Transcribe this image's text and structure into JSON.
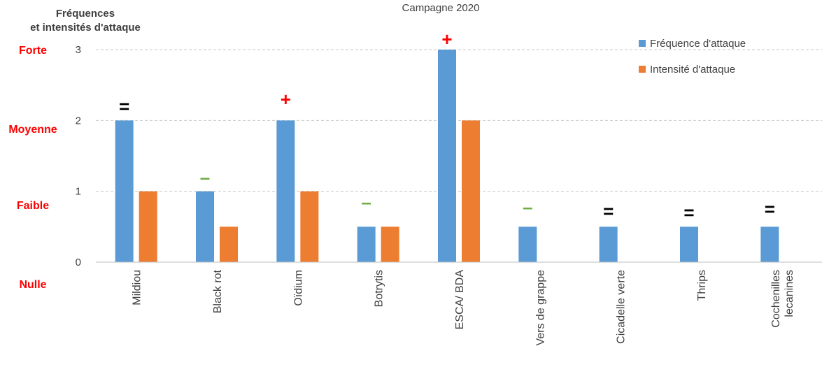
{
  "chart_data": {
    "type": "bar",
    "title": "Campagne 2020",
    "ylabel_lines": [
      "Fréquences",
      "et intensités d'attaque"
    ],
    "ylim": [
      0,
      3
    ],
    "yticks": [
      "0",
      "1",
      "2",
      "3"
    ],
    "grid": true,
    "legend_position": "top-right",
    "level_labels": [
      {
        "label": "Forte",
        "value": 3
      },
      {
        "label": "Moyenne",
        "value": 2
      },
      {
        "label": "Faible",
        "value": 1
      },
      {
        "label": "Nulle",
        "value": 0
      }
    ],
    "categories": [
      [
        "Mildiou"
      ],
      [
        "Black rot"
      ],
      [
        "Oïdium"
      ],
      [
        "Botrytis"
      ],
      [
        "ESCA/ BDA"
      ],
      [
        "Vers de grappe"
      ],
      [
        "Cicadelle verte"
      ],
      [
        "Thrips"
      ],
      [
        "Cochenilles",
        "lecanines"
      ]
    ],
    "series": [
      {
        "name": "Fréquence d'attaque",
        "color": "#5B9BD5",
        "values": [
          2,
          1,
          2,
          0.5,
          3,
          0.5,
          0.5,
          0.5,
          0.5
        ]
      },
      {
        "name": "Intensité d'attaque",
        "color": "#ED7D31",
        "values": [
          1,
          0.5,
          1,
          0.5,
          2,
          null,
          null,
          null,
          null
        ]
      }
    ],
    "trend_marks": [
      {
        "symbol": "=",
        "meaning": "equal",
        "color": "#000000",
        "y": 2.2
      },
      {
        "symbol": "–",
        "meaning": "decrease",
        "color": "#70AD47",
        "y": 1.2
      },
      {
        "symbol": "+",
        "meaning": "increase",
        "color": "#FF0000",
        "y": 2.3
      },
      {
        "symbol": "–",
        "meaning": "decrease",
        "color": "#70AD47",
        "y": 0.85
      },
      {
        "symbol": "+",
        "meaning": "increase",
        "color": "#FF0000",
        "y": 3.15
      },
      {
        "symbol": "–",
        "meaning": "decrease",
        "color": "#70AD47",
        "y": 0.78
      },
      {
        "symbol": "=",
        "meaning": "equal",
        "color": "#000000",
        "y": 0.72
      },
      {
        "symbol": "=",
        "meaning": "equal",
        "color": "#000000",
        "y": 0.7
      },
      {
        "symbol": "=",
        "meaning": "equal",
        "color": "#000000",
        "y": 0.75
      }
    ],
    "level_color": "#FF0000"
  }
}
